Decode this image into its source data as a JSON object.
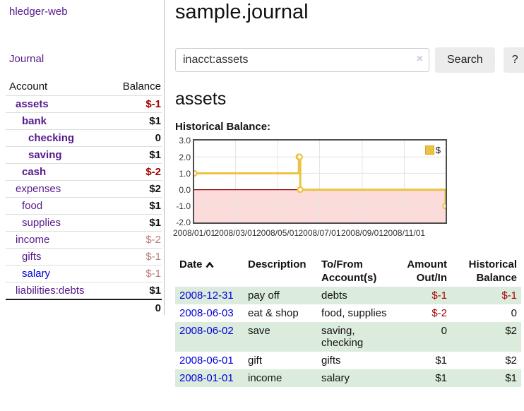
{
  "app": {
    "title": "hledger-web"
  },
  "sidebar": {
    "nav_journal": "Journal",
    "accounts": {
      "col_account": "Account",
      "col_balance": "Balance",
      "rows": [
        {
          "label": "assets",
          "depth": 0,
          "bold": true,
          "link": "purple",
          "balance": "$-1",
          "bstyle": "neg-strong"
        },
        {
          "label": "bank",
          "depth": 1,
          "bold": true,
          "link": "purple",
          "balance": "$1",
          "bstyle": "pos"
        },
        {
          "label": "checking",
          "depth": 2,
          "bold": true,
          "link": "purple",
          "balance": "0",
          "bstyle": "pos"
        },
        {
          "label": "saving",
          "depth": 2,
          "bold": true,
          "link": "purple",
          "balance": "$1",
          "bstyle": "pos"
        },
        {
          "label": "cash",
          "depth": 1,
          "bold": true,
          "link": "purple",
          "balance": "$-2",
          "bstyle": "neg-strong"
        },
        {
          "label": "expenses",
          "depth": 0,
          "bold": false,
          "link": "purple",
          "balance": "$2",
          "bstyle": "pos"
        },
        {
          "label": "food",
          "depth": 1,
          "bold": false,
          "link": "purple",
          "balance": "$1",
          "bstyle": "pos"
        },
        {
          "label": "supplies",
          "depth": 1,
          "bold": false,
          "link": "purple",
          "balance": "$1",
          "bstyle": "pos"
        },
        {
          "label": "income",
          "depth": 0,
          "bold": false,
          "link": "purple",
          "balance": "$-2",
          "bstyle": "neg-soft"
        },
        {
          "label": "gifts",
          "depth": 1,
          "bold": false,
          "link": "purple",
          "balance": "$-1",
          "bstyle": "neg-soft"
        },
        {
          "label": "salary",
          "depth": 1,
          "bold": false,
          "link": "blue",
          "balance": "$-1",
          "bstyle": "neg-soft"
        },
        {
          "label": "liabilities:debts",
          "depth": 0,
          "bold": false,
          "link": "purple",
          "balance": "$1",
          "bstyle": "pos"
        }
      ],
      "total": "0"
    }
  },
  "header": {
    "title": "sample.journal"
  },
  "search": {
    "value": "inacct:assets",
    "clear_icon": "×",
    "button": "Search",
    "help_button": "?"
  },
  "account_page": {
    "title": "assets"
  },
  "chart_data": {
    "type": "line",
    "title": "Historical Balance:",
    "step": true,
    "xlim": [
      "2008-01-01",
      "2008-12-31"
    ],
    "ylim": [
      -2,
      3
    ],
    "yticks": [
      {
        "v": 3,
        "label": "3.0"
      },
      {
        "v": 2,
        "label": "2.0"
      },
      {
        "v": 1,
        "label": "1.0"
      },
      {
        "v": 0,
        "label": "0.0"
      },
      {
        "v": -1,
        "label": "-1.0"
      },
      {
        "v": -2,
        "label": "-2.0"
      }
    ],
    "xticks": [
      {
        "t": "2008-01-01",
        "label": "2008/01/01"
      },
      {
        "t": "2008-03-01",
        "label": "2008/03/01"
      },
      {
        "t": "2008-05-01",
        "label": "2008/05/01"
      },
      {
        "t": "2008-07-01",
        "label": "2008/07/01"
      },
      {
        "t": "2008-09-01",
        "label": "2008/09/01"
      },
      {
        "t": "2008-11-01",
        "label": "2008/11/01"
      }
    ],
    "series": [
      {
        "name": "$",
        "color": "#edc240",
        "points": [
          {
            "date": "2008-01-01",
            "value": 1
          },
          {
            "date": "2008-06-01",
            "value": 2
          },
          {
            "date": "2008-06-02",
            "value": 2
          },
          {
            "date": "2008-06-03",
            "value": 0
          },
          {
            "date": "2008-12-31",
            "value": -1
          }
        ]
      }
    ],
    "legend": [
      {
        "label": "$",
        "color": "#edc240"
      }
    ],
    "legend_position": "top-right",
    "grid": true,
    "zero_line_color": "#8f0000",
    "negative_region_color": "#fcdbdb"
  },
  "journal": {
    "columns": {
      "date": "Date",
      "description": "Description",
      "tofrom": [
        "To/From",
        "Account(s)"
      ],
      "amount": [
        "Amount",
        "Out/In"
      ],
      "historical": [
        "Historical",
        "Balance"
      ]
    },
    "rows": [
      {
        "date": "2008-12-31",
        "description": "pay off",
        "accounts": "debts",
        "amount": "$-1",
        "amount_neg": true,
        "balance": "$-1",
        "balance_neg": true
      },
      {
        "date": "2008-06-03",
        "description": "eat & shop",
        "accounts": "food, supplies",
        "amount": "$-2",
        "amount_neg": true,
        "balance": "0",
        "balance_neg": false
      },
      {
        "date": "2008-06-02",
        "description": "save",
        "accounts": "saving, checking",
        "amount": "0",
        "amount_neg": false,
        "balance": "$2",
        "balance_neg": false
      },
      {
        "date": "2008-06-01",
        "description": "gift",
        "accounts": "gifts",
        "amount": "$1",
        "amount_neg": false,
        "balance": "$2",
        "balance_neg": false
      },
      {
        "date": "2008-01-01",
        "description": "income",
        "accounts": "salary",
        "amount": "$1",
        "amount_neg": false,
        "balance": "$1",
        "balance_neg": false
      }
    ]
  },
  "colors": {
    "link_purple": "#551a8b",
    "link_blue": "#0000dd",
    "negative_strong": "#a40000",
    "negative_soft": "#bd7b7b",
    "row_stripe_green": "#dcecdc",
    "chart_line_gold": "#edc240",
    "chart_negative_bg": "#fcdbdb",
    "chart_zero_line": "#8f0000",
    "grid_line": "#e4e4e4"
  }
}
